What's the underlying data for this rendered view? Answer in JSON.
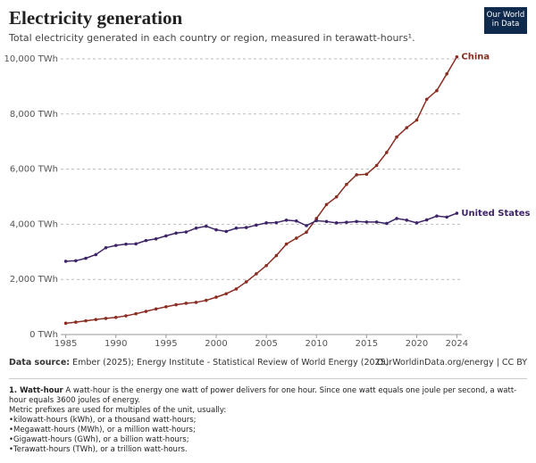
{
  "logo": [
    "Our World",
    "in Data"
  ],
  "chart_data": {
    "type": "line",
    "title": "Electricity generation",
    "subtitle": "Total electricity generated in each country or region, measured in terawatt-hours¹.",
    "x": [
      1985,
      1986,
      1987,
      1988,
      1989,
      1990,
      1991,
      1992,
      1993,
      1994,
      1995,
      1996,
      1997,
      1998,
      1999,
      2000,
      2001,
      2002,
      2003,
      2004,
      2005,
      2006,
      2007,
      2008,
      2009,
      2010,
      2011,
      2012,
      2013,
      2014,
      2015,
      2016,
      2017,
      2018,
      2019,
      2020,
      2021,
      2022,
      2023,
      2024
    ],
    "series": [
      {
        "name": "China",
        "color": "#8a2d22",
        "values": [
          410,
          450,
          497,
          545,
          585,
          621,
          678,
          754,
          840,
          928,
          1007,
          1081,
          1134,
          1167,
          1239,
          1356,
          1480,
          1654,
          1911,
          2203,
          2500,
          2866,
          3282,
          3496,
          3715,
          4208,
          4716,
          4994,
          5447,
          5794,
          5815,
          6133,
          6604,
          7166,
          7503,
          7779,
          8534,
          8849,
          9456,
          10073
        ]
      },
      {
        "name": "United States",
        "color": "#3d2466",
        "values": [
          2657,
          2676,
          2767,
          2900,
          3150,
          3232,
          3280,
          3290,
          3410,
          3470,
          3580,
          3680,
          3720,
          3860,
          3930,
          3800,
          3740,
          3860,
          3880,
          3970,
          4050,
          4060,
          4150,
          4120,
          3950,
          4130,
          4100,
          4050,
          4070,
          4100,
          4080,
          4080,
          4030,
          4210,
          4150,
          4050,
          4160,
          4300,
          4260,
          4400
        ]
      }
    ],
    "xlim": [
      1984.5,
      2024.5
    ],
    "xticks": [
      1985,
      1990,
      1995,
      2000,
      2005,
      2010,
      2015,
      2020,
      2024
    ],
    "ylim": [
      0,
      10000
    ],
    "yticks": [
      {
        "value": 0,
        "label": "0 TWh"
      },
      {
        "value": 2000,
        "label": "2,000 TWh"
      },
      {
        "value": 4000,
        "label": "4,000 TWh"
      },
      {
        "value": 6000,
        "label": "6,000 TWh"
      },
      {
        "value": 8000,
        "label": "8,000 TWh"
      },
      {
        "value": 10000,
        "label": "10,000 TWh"
      }
    ],
    "grid": true
  },
  "source": {
    "label": "Data source:",
    "text": "Ember (2025); Energy Institute - Statistical Review of World Energy (2025)"
  },
  "url": "OurWorldinData.org/energy | CC BY",
  "notes": {
    "term": "1. Watt-hour",
    "definition": "A watt-hour is the energy one watt of power delivers for one hour. Since one watt equals one joule per second, a watt-hour equals 3600 joules of energy.",
    "intro": "Metric prefixes are used for multiples of the unit, usually:",
    "items": [
      "kilowatt-hours (kWh), or a thousand watt-hours;",
      "Megawatt-hours (MWh), or a million watt-hours;",
      "Gigawatt-hours (GWh), or a billion watt-hours;",
      "Terawatt-hours (TWh), or a trillion watt-hours."
    ]
  }
}
